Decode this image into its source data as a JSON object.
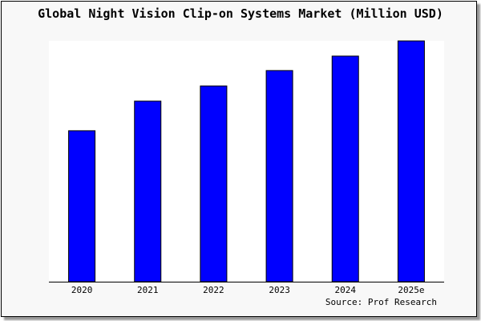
{
  "chart_data": {
    "type": "bar",
    "title": "Global Night Vision Clip-on Systems Market (Million USD)",
    "categories": [
      "2020",
      "2021",
      "2022",
      "2023",
      "2024",
      "2025e"
    ],
    "values": [
      62.7,
      75,
      81.3,
      87.7,
      93.7,
      100
    ],
    "value_note_relative": true,
    "ylim": [
      0,
      100
    ],
    "xlabel": "",
    "ylabel": "",
    "grid": false,
    "legend": "none",
    "bar_color": "#0000ff",
    "source": "Source: Prof Research"
  }
}
